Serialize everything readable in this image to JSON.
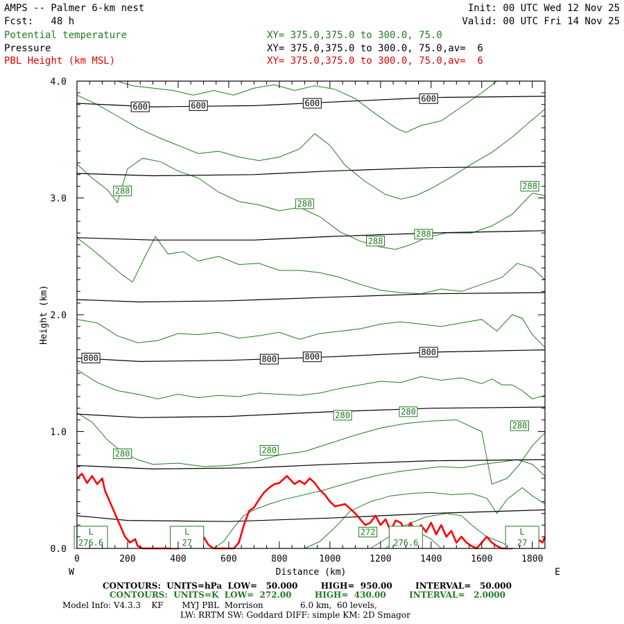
{
  "header": {
    "title": "AMPS -- Palmer 6-km nest",
    "fcst": "Fcst:   48 h",
    "init": "Init: 00 UTC Wed 12 Nov 25",
    "valid": "Valid: 00 UTC Fri 14 Nov 25",
    "field1": "Potential temperature",
    "field1_xy": "XY= 375.0,375.0 to 300.0, 75.0",
    "field2": "Pressure",
    "field2_xy": "XY= 375.0,375.0 to 300.0, 75.0,av=  6",
    "field3": "PBL Height (km MSL)",
    "field3_xy": "XY= 375.0,375.0 to 300.0, 75.0,av=  6"
  },
  "colors": {
    "theta": "#1f7a1f",
    "pressure": "#000000",
    "pbl": "#ff0000"
  },
  "footer": {
    "line1_label": "CONTOURS:  UNITS=hPa  LOW=   50.000        HIGH=  950.00        INTERVAL=   50.000",
    "line2_label": "CONTOURS:  UNITS=K  LOW=  272.00        HIGH=  430.00        INTERVAL=   2.0000",
    "line3": "Model Info: V4.3.3    KF       MYJ PBL  Morrison              6.0 km,  60 levels,",
    "line4": "LW: RRTM SW: Goddard DIFF: simple KM: 2D Smagor"
  },
  "chart_data": {
    "type": "line",
    "xlabel": "Distance (km)",
    "ylabel": "Height (km)",
    "xlim": [
      0,
      1850
    ],
    "ylim": [
      0,
      4
    ],
    "x_ticks": [
      0,
      200,
      400,
      600,
      800,
      1000,
      1200,
      1400,
      1600,
      1800
    ],
    "y_ticks": [
      "0.0",
      "1.0",
      "2.0",
      "3.0",
      "4.0"
    ],
    "x_end_labels": {
      "left": "W",
      "right": "E"
    },
    "pressure_contours": [
      {
        "x": [
          0,
          200,
          600,
          1000,
          1400,
          1850
        ],
        "y": [
          0.28,
          0.24,
          0.23,
          0.26,
          0.3,
          0.33
        ]
      },
      {
        "x": [
          0,
          300,
          700,
          1000,
          1400,
          1850
        ],
        "y": [
          0.71,
          0.68,
          0.69,
          0.72,
          0.75,
          0.76
        ]
      },
      {
        "x": [
          0,
          250,
          600,
          1000,
          1400,
          1850
        ],
        "y": [
          1.15,
          1.12,
          1.13,
          1.17,
          1.2,
          1.21
        ]
      },
      {
        "x": [
          0,
          250,
          600,
          1000,
          1400,
          1850
        ],
        "y": [
          1.63,
          1.6,
          1.61,
          1.64,
          1.68,
          1.7
        ]
      },
      {
        "x": [
          0,
          250,
          600,
          1000,
          1400,
          1850
        ],
        "y": [
          2.13,
          2.11,
          2.12,
          2.15,
          2.18,
          2.19
        ]
      },
      {
        "x": [
          0,
          300,
          700,
          1000,
          1400,
          1850
        ],
        "y": [
          2.66,
          2.64,
          2.64,
          2.67,
          2.7,
          2.72
        ]
      },
      {
        "x": [
          0,
          300,
          700,
          1000,
          1400,
          1850
        ],
        "y": [
          3.21,
          3.19,
          3.2,
          3.23,
          3.26,
          3.27
        ]
      },
      {
        "x": [
          0,
          300,
          700,
          1000,
          1400,
          1850
        ],
        "y": [
          3.81,
          3.78,
          3.79,
          3.82,
          3.86,
          3.87
        ]
      }
    ],
    "pressure_labels": [
      {
        "text": "600",
        "x": 250,
        "y": 3.78
      },
      {
        "text": "600",
        "x": 480,
        "y": 3.79
      },
      {
        "text": "600",
        "x": 930,
        "y": 3.81
      },
      {
        "text": "600",
        "x": 1390,
        "y": 3.85
      },
      {
        "text": "800",
        "x": 55,
        "y": 1.63
      },
      {
        "text": "800",
        "x": 760,
        "y": 1.62
      },
      {
        "text": "800",
        "x": 930,
        "y": 1.64
      },
      {
        "text": "800",
        "x": 1390,
        "y": 1.68
      }
    ],
    "theta_contours": [
      {
        "x": [
          0,
          60,
          120,
          180,
          240,
          300,
          400,
          500,
          600,
          700,
          800,
          900,
          1000,
          1100,
          1200,
          1300,
          1400,
          1500,
          1600,
          1640,
          1700,
          1750,
          1800,
          1850
        ],
        "y": [
          1.16,
          1.08,
          0.93,
          0.82,
          0.76,
          0.72,
          0.73,
          0.7,
          0.71,
          0.74,
          0.8,
          0.83,
          0.9,
          0.97,
          1.03,
          1.07,
          1.09,
          1.1,
          1.0,
          0.55,
          0.6,
          0.72,
          0.88,
          0.99
        ]
      },
      {
        "x": [
          0,
          80,
          160,
          240,
          320,
          400,
          480,
          560,
          640,
          720,
          800,
          880,
          960,
          1040,
          1120,
          1200,
          1280,
          1360,
          1440,
          1520,
          1600,
          1640,
          1680,
          1720,
          1760,
          1800,
          1850
        ],
        "y": [
          1.53,
          1.42,
          1.35,
          1.32,
          1.28,
          1.32,
          1.29,
          1.31,
          1.3,
          1.33,
          1.32,
          1.31,
          1.33,
          1.37,
          1.4,
          1.43,
          1.42,
          1.47,
          1.44,
          1.46,
          1.41,
          1.45,
          1.4,
          1.4,
          1.35,
          1.28,
          1.31
        ]
      },
      {
        "x": [
          0,
          80,
          160,
          240,
          320,
          400,
          480,
          560,
          640,
          720,
          800,
          880,
          960,
          1040,
          1120,
          1200,
          1280,
          1360,
          1440,
          1520,
          1600,
          1660,
          1720,
          1760,
          1800,
          1850
        ],
        "y": [
          1.96,
          1.93,
          1.82,
          1.76,
          1.78,
          1.84,
          1.83,
          1.85,
          1.8,
          1.82,
          1.85,
          1.79,
          1.84,
          1.86,
          1.88,
          1.92,
          1.94,
          1.92,
          1.9,
          1.93,
          1.96,
          1.86,
          2.0,
          1.97,
          1.83,
          1.72
        ]
      },
      {
        "x": [
          0,
          60,
          120,
          180,
          220,
          260,
          310,
          360,
          420,
          480,
          560,
          640,
          720,
          800,
          880,
          960,
          1040,
          1120,
          1200,
          1280,
          1360,
          1440,
          1520,
          1600,
          1680,
          1740,
          1800,
          1850
        ],
        "y": [
          2.66,
          2.56,
          2.45,
          2.34,
          2.28,
          2.46,
          2.67,
          2.52,
          2.54,
          2.46,
          2.5,
          2.43,
          2.44,
          2.38,
          2.38,
          2.36,
          2.32,
          2.26,
          2.21,
          2.19,
          2.18,
          2.22,
          2.2,
          2.26,
          2.32,
          2.44,
          2.4,
          2.3
        ]
      },
      {
        "x": [
          0,
          60,
          120,
          160,
          200,
          260,
          330,
          400,
          480,
          560,
          640,
          720,
          800,
          880,
          960,
          1040,
          1120,
          1200,
          1260,
          1320,
          1380,
          1460,
          1560,
          1640,
          1720,
          1800,
          1850
        ],
        "y": [
          3.29,
          3.17,
          3.07,
          2.96,
          3.25,
          3.34,
          3.31,
          3.23,
          3.17,
          3.05,
          2.97,
          2.94,
          2.89,
          2.92,
          2.84,
          2.71,
          2.63,
          2.58,
          2.56,
          2.6,
          2.66,
          2.7,
          2.7,
          2.76,
          2.86,
          3.04,
          3.02
        ]
      },
      {
        "x": [
          0,
          80,
          160,
          240,
          320,
          400,
          480,
          560,
          640,
          720,
          800,
          880,
          940,
          1000,
          1060,
          1140,
          1220,
          1280,
          1340,
          1400,
          1480,
          1560,
          1640,
          1720,
          1800,
          1850
        ],
        "y": [
          3.88,
          3.8,
          3.7,
          3.6,
          3.52,
          3.45,
          3.38,
          3.4,
          3.35,
          3.32,
          3.35,
          3.42,
          3.55,
          3.45,
          3.28,
          3.14,
          3.03,
          2.99,
          3.02,
          3.08,
          3.18,
          3.29,
          3.39,
          3.52,
          3.67,
          3.76
        ]
      },
      {
        "x": [
          160,
          220,
          300,
          380,
          460,
          540,
          620,
          700,
          780,
          860,
          940,
          1020,
          1100,
          1180,
          1260,
          1300,
          1360,
          1440,
          1520,
          1600,
          1660
        ],
        "y": [
          4.0,
          3.96,
          3.94,
          3.92,
          3.88,
          3.92,
          3.88,
          3.94,
          3.97,
          3.92,
          3.96,
          3.93,
          3.85,
          3.72,
          3.6,
          3.56,
          3.62,
          3.66,
          3.78,
          3.9,
          4.0
        ]
      },
      {
        "x": [
          540,
          580,
          620,
          660,
          700,
          760,
          820,
          880,
          960,
          1040,
          1120,
          1200,
          1280,
          1360,
          1440,
          1520,
          1600,
          1680,
          1740,
          1800,
          1850
        ],
        "y": [
          0.0,
          0.06,
          0.18,
          0.28,
          0.33,
          0.38,
          0.42,
          0.45,
          0.49,
          0.54,
          0.59,
          0.63,
          0.66,
          0.68,
          0.7,
          0.69,
          0.72,
          0.74,
          0.76,
          0.72,
          0.62
        ]
      },
      {
        "x": [
          900,
          960,
          1020,
          1080,
          1160,
          1240,
          1320,
          1400,
          1480,
          1560,
          1620,
          1660,
          1700,
          1760,
          1800,
          1850
        ],
        "y": [
          0.0,
          0.06,
          0.18,
          0.32,
          0.4,
          0.45,
          0.47,
          0.48,
          0.46,
          0.47,
          0.43,
          0.3,
          0.42,
          0.52,
          0.45,
          0.38
        ]
      },
      {
        "x": [
          1160,
          1220,
          1300,
          1380,
          1460,
          1520,
          1560,
          1620,
          1680,
          1720
        ],
        "y": [
          0.0,
          0.08,
          0.2,
          0.27,
          0.3,
          0.28,
          0.2,
          0.1,
          0.05,
          0.0
        ]
      },
      {
        "x": [
          1220,
          1280,
          1340,
          1400,
          1440
        ],
        "y": [
          0.0,
          0.1,
          0.15,
          0.08,
          0.0
        ]
      }
    ],
    "theta_labels": [
      {
        "text": "288",
        "x": 180,
        "y": 3.06
      },
      {
        "text": "288",
        "x": 900,
        "y": 2.95
      },
      {
        "text": "288",
        "x": 1180,
        "y": 2.63
      },
      {
        "text": "288",
        "x": 1370,
        "y": 2.69
      },
      {
        "text": "288",
        "x": 1790,
        "y": 3.1
      },
      {
        "text": "280",
        "x": 180,
        "y": 0.81
      },
      {
        "text": "280",
        "x": 760,
        "y": 0.84
      },
      {
        "text": "280",
        "x": 1050,
        "y": 1.14
      },
      {
        "text": "280",
        "x": 1310,
        "y": 1.17
      },
      {
        "text": "280",
        "x": 1750,
        "y": 1.05
      },
      {
        "text": "272",
        "x": 1150,
        "y": 0.14
      }
    ],
    "minimum_markers": [
      {
        "mark": "L",
        "value": "276.6",
        "x": 55
      },
      {
        "mark": "L",
        "value": "27",
        "x": 435
      },
      {
        "mark": "",
        "value": "276.6",
        "x": 1300
      },
      {
        "mark": "L",
        "value": "27",
        "x": 1760
      }
    ],
    "pbl_height": {
      "x": [
        0,
        20,
        40,
        60,
        80,
        100,
        110,
        130,
        150,
        170,
        190,
        210,
        230,
        240,
        260,
        300,
        350,
        400,
        440,
        460,
        480,
        500,
        520,
        540,
        560,
        580,
        600,
        620,
        640,
        660,
        680,
        700,
        720,
        740,
        760,
        780,
        800,
        830,
        860,
        880,
        900,
        920,
        940,
        960,
        980,
        1000,
        1020,
        1060,
        1100,
        1120,
        1140,
        1160,
        1180,
        1200,
        1220,
        1240,
        1260,
        1280,
        1300,
        1320,
        1340,
        1360,
        1380,
        1400,
        1420,
        1440,
        1460,
        1480,
        1500,
        1520,
        1540,
        1560,
        1580,
        1600,
        1620,
        1640,
        1660,
        1680,
        1700,
        1720,
        1740,
        1760,
        1780,
        1800,
        1820,
        1840,
        1850
      ],
      "y": [
        0.6,
        0.64,
        0.56,
        0.62,
        0.55,
        0.6,
        0.5,
        0.4,
        0.3,
        0.2,
        0.1,
        0.05,
        0.08,
        0.02,
        0.0,
        0.0,
        0.0,
        0.0,
        0.02,
        0.1,
        0.05,
        0.1,
        0.03,
        0.0,
        0.0,
        0.0,
        0.0,
        0.0,
        0.05,
        0.2,
        0.32,
        0.35,
        0.42,
        0.48,
        0.52,
        0.55,
        0.56,
        0.62,
        0.55,
        0.58,
        0.55,
        0.6,
        0.56,
        0.5,
        0.46,
        0.4,
        0.36,
        0.38,
        0.3,
        0.25,
        0.2,
        0.22,
        0.28,
        0.2,
        0.25,
        0.15,
        0.24,
        0.22,
        0.15,
        0.22,
        0.1,
        0.2,
        0.14,
        0.22,
        0.12,
        0.2,
        0.1,
        0.15,
        0.05,
        0.1,
        0.05,
        0.02,
        0.0,
        0.05,
        0.1,
        0.05,
        0.02,
        0.0,
        0.0,
        0.0,
        0.02,
        0.05,
        0.1,
        0.05,
        0.08,
        0.05,
        0.1
      ]
    }
  }
}
